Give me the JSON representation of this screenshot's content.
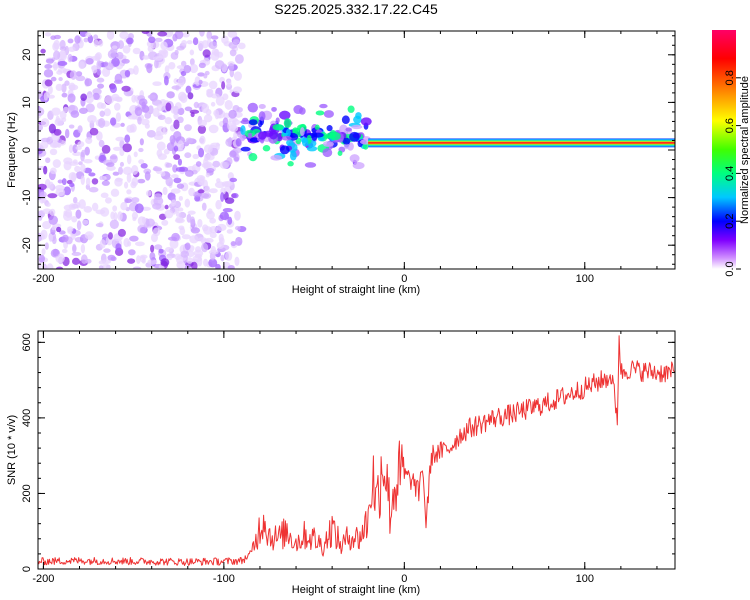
{
  "title": "S225.2025.332.17.22.C45",
  "chart_data": [
    {
      "type": "heatmap",
      "name": "spectrogram",
      "xlabel": "Height of straight line (km)",
      "ylabel": "Frequency (Hz)",
      "xlim": [
        -203,
        150
      ],
      "ylim": [
        -25,
        25
      ],
      "xticks": [
        -200,
        -100,
        0,
        100
      ],
      "yticks": [
        -20,
        -10,
        0,
        10,
        20
      ],
      "colorbar": {
        "label": "Normalized spectral amplitude",
        "range": [
          0,
          1
        ],
        "ticks": [
          0.0,
          0.2,
          0.4,
          0.6,
          0.8
        ],
        "tick_labels": [
          "0.0",
          "0.2",
          "0.4",
          "0.6",
          "0.8"
        ],
        "colors": [
          "#ffffff",
          "#cc88ff",
          "#8000ff",
          "#0000ff",
          "#00c8ff",
          "#00ff80",
          "#40ff00",
          "#ffff00",
          "#ff8000",
          "#ff0000",
          "#ff0066"
        ]
      },
      "regions": [
        {
          "description": "noise",
          "x_range": [
            -203,
            -90
          ],
          "amplitude": 0.1
        },
        {
          "description": "scattered onset",
          "x_range": [
            -90,
            -20
          ],
          "freq_center": 3,
          "amplitude": 0.25
        },
        {
          "description": "stable band",
          "x_range": [
            -20,
            150
          ],
          "freq_center": 1.5,
          "amplitude": 0.85
        }
      ]
    },
    {
      "type": "line",
      "name": "snr",
      "xlabel": "Height of straight line (km)",
      "ylabel": "SNR (10 * v/v)",
      "xlim": [
        -203,
        150
      ],
      "ylim": [
        0,
        630
      ],
      "xticks": [
        -200,
        -100,
        0,
        100
      ],
      "yticks": [
        0,
        200,
        400,
        600
      ],
      "color": "#ee3333",
      "series": [
        {
          "name": "SNR",
          "x": [
            -203,
            -180,
            -160,
            -140,
            -120,
            -100,
            -90,
            -85,
            -80,
            -78,
            -75,
            -70,
            -65,
            -60,
            -55,
            -50,
            -45,
            -40,
            -35,
            -30,
            -25,
            -20,
            -18,
            -15,
            -12,
            -10,
            -8,
            -5,
            0,
            5,
            8,
            10,
            12,
            15,
            20,
            25,
            30,
            35,
            40,
            50,
            60,
            70,
            80,
            90,
            100,
            110,
            115,
            118,
            119,
            120,
            125,
            130,
            140,
            150
          ],
          "y": [
            20,
            22,
            21,
            20,
            19,
            20,
            22,
            40,
            110,
            140,
            90,
            80,
            100,
            70,
            90,
            80,
            60,
            110,
            60,
            90,
            80,
            130,
            250,
            180,
            300,
            260,
            150,
            230,
            250,
            230,
            200,
            280,
            120,
            300,
            310,
            320,
            350,
            370,
            380,
            400,
            410,
            425,
            440,
            460,
            480,
            500,
            510,
            400,
            620,
            520,
            530,
            525,
            520,
            520
          ]
        }
      ]
    }
  ]
}
